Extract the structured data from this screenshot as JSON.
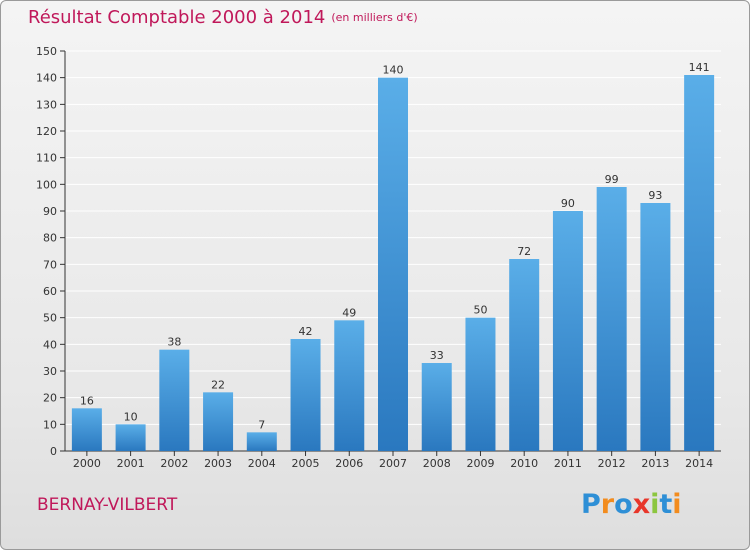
{
  "title": "Résultat Comptable 2000 à 2014",
  "subtitle": "(en milliers d'€)",
  "commune": "BERNAY-VILBERT",
  "logo": {
    "text": "Proxiti",
    "letters": [
      {
        "ch": "P",
        "color": "#2e8fd6"
      },
      {
        "ch": "r",
        "color": "#f28c1e"
      },
      {
        "ch": "o",
        "color": "#2e8fd6"
      },
      {
        "ch": "x",
        "color": "#e8362a"
      },
      {
        "ch": "i",
        "color": "#8cc63f"
      },
      {
        "ch": "t",
        "color": "#2e8fd6"
      },
      {
        "ch": "i",
        "color": "#f28c1e"
      }
    ]
  },
  "colors": {
    "title": "#c0185a",
    "bar_light": "#5aaee8",
    "bar_dark": "#2a78bf",
    "grid": "#ffffff",
    "axis": "#333333"
  },
  "chart_data": {
    "type": "bar",
    "title": "Résultat Comptable 2000 à 2014",
    "ylabel": "(en milliers d'€)",
    "xlabel": "",
    "categories": [
      "2000",
      "2001",
      "2002",
      "2003",
      "2004",
      "2005",
      "2006",
      "2007",
      "2008",
      "2009",
      "2010",
      "2011",
      "2012",
      "2013",
      "2014"
    ],
    "values": [
      16,
      10,
      38,
      22,
      7,
      42,
      49,
      140,
      33,
      50,
      72,
      90,
      99,
      93,
      141
    ],
    "ylim": [
      0,
      150
    ],
    "yticks": [
      0,
      10,
      20,
      30,
      40,
      50,
      60,
      70,
      80,
      90,
      100,
      110,
      120,
      130,
      140,
      150
    ],
    "grid": true
  }
}
